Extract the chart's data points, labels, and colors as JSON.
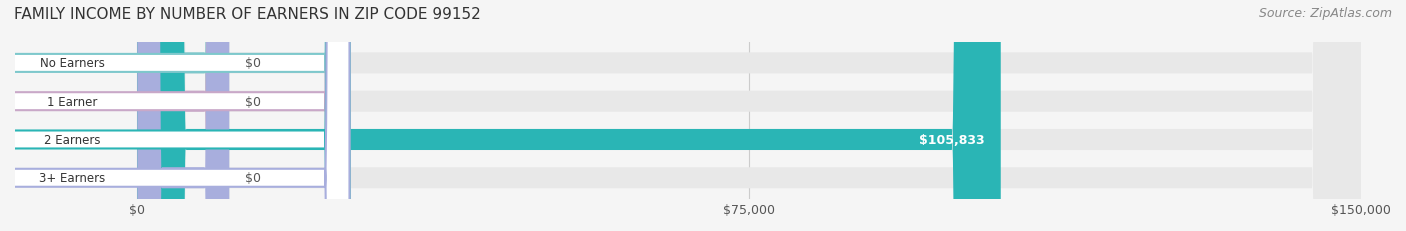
{
  "title": "FAMILY INCOME BY NUMBER OF EARNERS IN ZIP CODE 99152",
  "source": "Source: ZipAtlas.com",
  "categories": [
    "No Earners",
    "1 Earner",
    "2 Earners",
    "3+ Earners"
  ],
  "values": [
    0,
    0,
    105833,
    0
  ],
  "bar_colors": [
    "#7ec8cc",
    "#c9a8c8",
    "#2ab5b5",
    "#a8aedd"
  ],
  "label_colors": [
    "#7ec8cc",
    "#c9a8c8",
    "#2ab5b5",
    "#a8aedd"
  ],
  "value_labels": [
    "$0",
    "$0",
    "$105,833",
    "$0"
  ],
  "xlim": [
    0,
    150000
  ],
  "xticks": [
    0,
    75000,
    150000
  ],
  "xtick_labels": [
    "$0",
    "$75,000",
    "$150,000"
  ],
  "bar_height": 0.55,
  "background_color": "#f5f5f5",
  "bar_bg_color": "#e8e8e8",
  "title_fontsize": 11,
  "source_fontsize": 9
}
